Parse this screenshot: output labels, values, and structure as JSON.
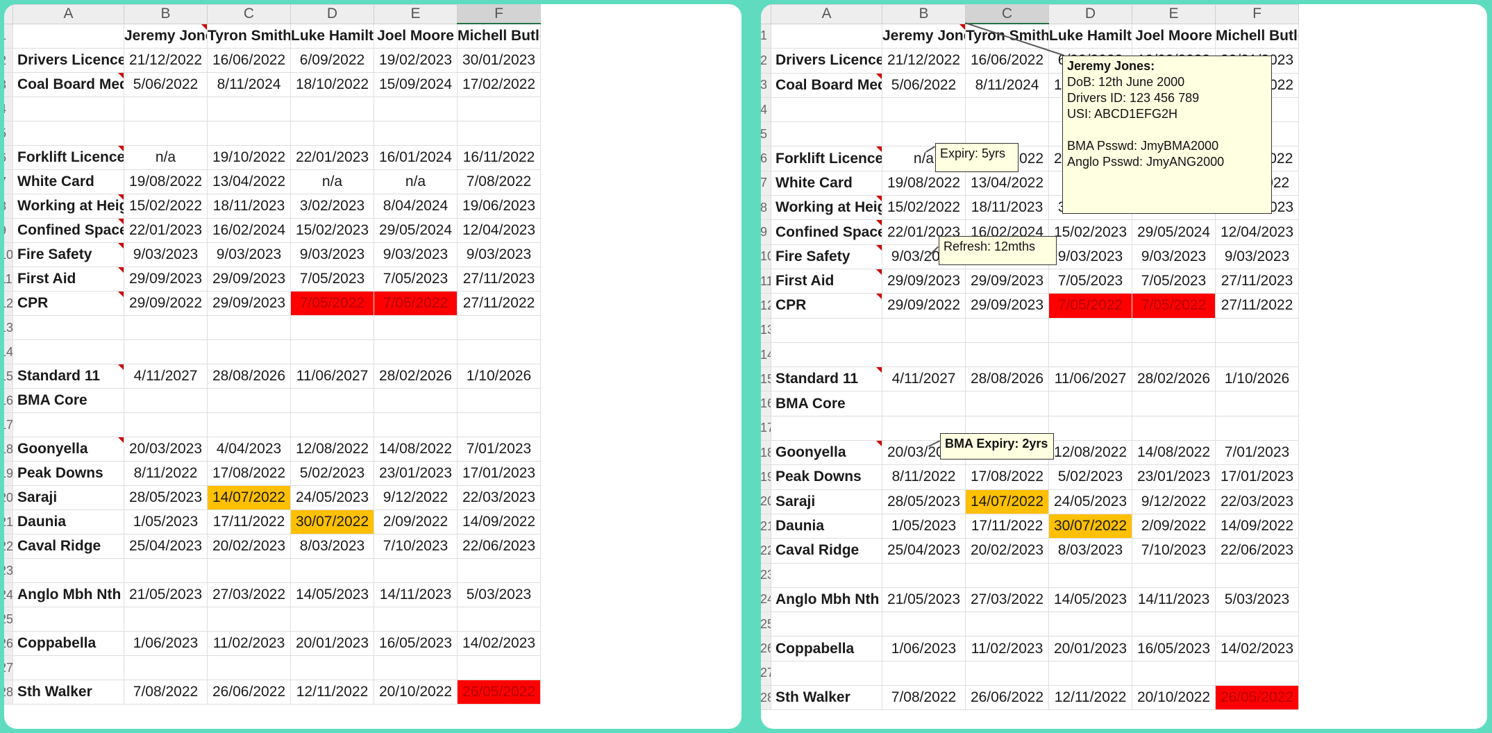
{
  "columns": [
    "A",
    "B",
    "C",
    "D",
    "E",
    "F"
  ],
  "rownums": [
    "",
    "1",
    "2",
    "3",
    "4",
    "5",
    "6",
    "7",
    "8",
    "9",
    "10",
    "11",
    "12",
    "13",
    "14",
    "15",
    "16",
    "17",
    "18",
    "19",
    "20",
    "21",
    "22",
    "23",
    "24",
    "25",
    "26",
    "27",
    "28"
  ],
  "people": [
    "Jeremy Jones",
    "Tyron Smith",
    "Luke Hamilton",
    "Joel Moore",
    "Michell Butler"
  ],
  "rows": [
    {
      "label": "Drivers Licence",
      "vals": [
        "21/12/2022",
        "16/06/2022",
        "6/09/2022",
        "19/02/2023",
        "30/01/2023"
      ]
    },
    {
      "label": "Coal Board Medical",
      "vals": [
        "5/06/2022",
        "8/11/2024",
        "18/10/2022",
        "15/09/2024",
        "17/02/2022"
      ]
    },
    {
      "label": "",
      "vals": [
        "",
        "",
        "",
        "",
        ""
      ]
    },
    {
      "label": "",
      "vals": [
        "",
        "",
        "",
        "",
        ""
      ]
    },
    {
      "label": "Forklift Licence",
      "vals": [
        "n/a",
        "19/10/2022",
        "22/01/2023",
        "16/01/2024",
        "16/11/2022"
      ]
    },
    {
      "label": "White Card",
      "vals": [
        "19/08/2022",
        "13/04/2022",
        "n/a",
        "n/a",
        "7/08/2022"
      ]
    },
    {
      "label": "Working at Heights",
      "vals": [
        "15/02/2022",
        "18/11/2023",
        "3/02/2023",
        "8/04/2024",
        "19/06/2023"
      ]
    },
    {
      "label": "Confined Spaces",
      "vals": [
        "22/01/2023",
        "16/02/2024",
        "15/02/2023",
        "29/05/2024",
        "12/04/2023"
      ]
    },
    {
      "label": "Fire Safety",
      "vals": [
        "9/03/2023",
        "9/03/2023",
        "9/03/2023",
        "9/03/2023",
        "9/03/2023"
      ]
    },
    {
      "label": "First Aid",
      "vals": [
        "29/09/2023",
        "29/09/2023",
        "7/05/2023",
        "7/05/2023",
        "27/11/2023"
      ]
    },
    {
      "label": "CPR",
      "vals": [
        "29/09/2022",
        "29/09/2023",
        "7/05/2022",
        "7/05/2022",
        "27/11/2022"
      ]
    },
    {
      "label": "",
      "vals": [
        "",
        "",
        "",
        "",
        ""
      ]
    },
    {
      "label": "",
      "vals": [
        "",
        "",
        "",
        "",
        ""
      ]
    },
    {
      "label": "Standard 11",
      "vals": [
        "4/11/2027",
        "28/08/2026",
        "11/06/2027",
        "28/02/2026",
        "1/10/2026"
      ]
    },
    {
      "label": "BMA Core",
      "vals": [
        "",
        "",
        "",
        "",
        ""
      ]
    },
    {
      "label": "",
      "vals": [
        "",
        "",
        "",
        "",
        ""
      ]
    },
    {
      "label": "Goonyella",
      "vals": [
        "20/03/2023",
        "4/04/2023",
        "12/08/2022",
        "14/08/2022",
        "7/01/2023"
      ]
    },
    {
      "label": "Peak Downs",
      "vals": [
        "8/11/2022",
        "17/08/2022",
        "5/02/2023",
        "23/01/2023",
        "17/01/2023"
      ]
    },
    {
      "label": "Saraji",
      "vals": [
        "28/05/2023",
        "14/07/2022",
        "24/05/2023",
        "9/12/2022",
        "22/03/2023"
      ]
    },
    {
      "label": "Daunia",
      "vals": [
        "1/05/2023",
        "17/11/2022",
        "30/07/2022",
        "2/09/2022",
        "14/09/2022"
      ]
    },
    {
      "label": "Caval Ridge",
      "vals": [
        "25/04/2023",
        "20/02/2023",
        "8/03/2023",
        "7/10/2023",
        "22/06/2023"
      ]
    },
    {
      "label": "",
      "vals": [
        "",
        "",
        "",
        "",
        ""
      ]
    },
    {
      "label": "Anglo Mbh Nth",
      "vals": [
        "21/05/2023",
        "27/03/2022",
        "14/05/2023",
        "14/11/2023",
        "5/03/2023"
      ]
    },
    {
      "label": "",
      "vals": [
        "",
        "",
        "",
        "",
        ""
      ]
    },
    {
      "label": "Coppabella",
      "vals": [
        "1/06/2023",
        "11/02/2023",
        "20/01/2023",
        "16/05/2023",
        "14/02/2023"
      ]
    },
    {
      "label": "",
      "vals": [
        "",
        "",
        "",
        "",
        ""
      ]
    },
    {
      "label": "Sth Walker",
      "vals": [
        "7/08/2022",
        "26/06/2022",
        "12/11/2022",
        "20/10/2022",
        "26/05/2022"
      ]
    }
  ],
  "highlights": {
    "red": "#ff0000",
    "amber": "#ffc000",
    "red_text": "#b40000"
  },
  "comments": {
    "jeremy_jones": {
      "title": "Jeremy Jones:",
      "lines": [
        "DoB: 12th June 2000",
        "Drivers ID: 123 456 789",
        "USI: ABCD1EFG2H",
        "",
        "BMA Psswd: JmyBMA2000",
        "Anglo Psswd: JmyANG2000"
      ]
    },
    "forklift": "Expiry: 5yrs",
    "fire_safety": "Refresh: 12mths",
    "goonyella": "BMA Expiry: 2yrs"
  }
}
